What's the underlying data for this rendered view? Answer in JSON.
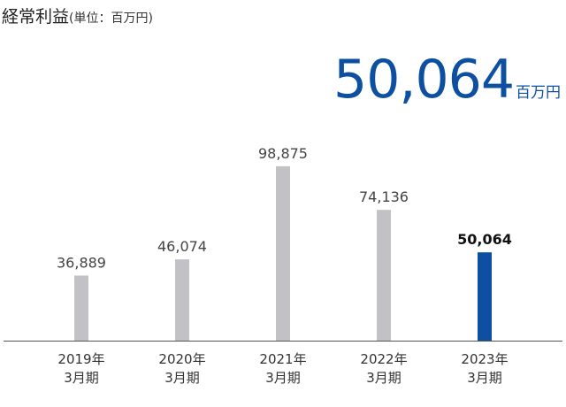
{
  "chart_data": {
    "type": "bar",
    "title": "経常利益",
    "unit_note": "(単位：百万円)",
    "headline": {
      "value": "50,064",
      "unit": "百万円"
    },
    "categories": [
      {
        "year": "2019年",
        "period": "3月期"
      },
      {
        "year": "2020年",
        "period": "3月期"
      },
      {
        "year": "2021年",
        "period": "3月期"
      },
      {
        "year": "2022年",
        "period": "3月期"
      },
      {
        "year": "2023年",
        "period": "3月期"
      }
    ],
    "values": [
      36889,
      46074,
      98875,
      74136,
      50064
    ],
    "value_labels": [
      "36,889",
      "46,074",
      "98,875",
      "74,136",
      "50,064"
    ],
    "highlight_index": 4,
    "ylim": [
      0,
      100000
    ],
    "grid": false,
    "colors": {
      "bar": "#c2c2c6",
      "highlight": "#0d4fa0",
      "axis": "#555555",
      "headline": "#0d4fa0"
    }
  }
}
